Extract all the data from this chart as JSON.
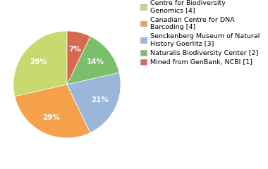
{
  "labels": [
    "Centre for Biodiversity\nGenomics [4]",
    "Canadian Centre for DNA\nBarcoding [4]",
    "Senckenberg Museum of Natural\nHistory Goerlitz [3]",
    "Naturalis Biodiversity Center [2]",
    "Mined from GenBank, NCBI [1]"
  ],
  "values": [
    28,
    28,
    21,
    14,
    7
  ],
  "colors": [
    "#c8d96f",
    "#f5a04a",
    "#9ab7d9",
    "#7bbf6a",
    "#d9694e"
  ],
  "startangle": 90,
  "background_color": "#ffffff",
  "pct_fontsize": 7.5,
  "legend_fontsize": 6.8
}
